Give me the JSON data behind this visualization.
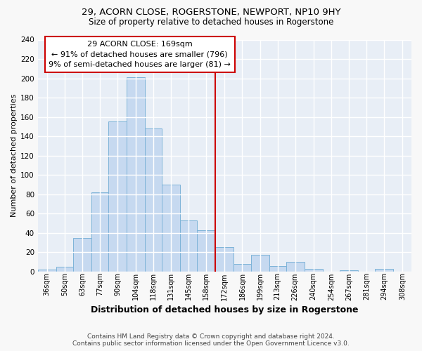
{
  "title_line1": "29, ACORN CLOSE, ROGERSTONE, NEWPORT, NP10 9HY",
  "title_line2": "Size of property relative to detached houses in Rogerstone",
  "xlabel": "Distribution of detached houses by size in Rogerstone",
  "ylabel": "Number of detached properties",
  "bar_color": "#c6d9f0",
  "bar_edge_color": "#7db3d8",
  "background_color": "#e8eef6",
  "grid_color": "#ffffff",
  "categories": [
    "36sqm",
    "50sqm",
    "63sqm",
    "77sqm",
    "90sqm",
    "104sqm",
    "118sqm",
    "131sqm",
    "145sqm",
    "158sqm",
    "172sqm",
    "186sqm",
    "199sqm",
    "213sqm",
    "226sqm",
    "240sqm",
    "254sqm",
    "267sqm",
    "281sqm",
    "294sqm",
    "308sqm"
  ],
  "values": [
    2,
    5,
    35,
    82,
    155,
    201,
    148,
    90,
    53,
    43,
    25,
    8,
    17,
    6,
    10,
    3,
    0,
    1,
    0,
    3,
    0
  ],
  "bin_edges": [
    36,
    50,
    63,
    77,
    90,
    104,
    118,
    131,
    145,
    158,
    172,
    186,
    199,
    213,
    226,
    240,
    254,
    267,
    281,
    294,
    308,
    322
  ],
  "vline_x": 172,
  "vline_color": "#cc0000",
  "box_text_line1": "29 ACORN CLOSE: 169sqm",
  "box_text_line2": "← 91% of detached houses are smaller (796)",
  "box_text_line3": "9% of semi-detached houses are larger (81) →",
  "box_facecolor": "#ffffff",
  "box_edgecolor": "#cc0000",
  "footer_line1": "Contains HM Land Registry data © Crown copyright and database right 2024.",
  "footer_line2": "Contains public sector information licensed under the Open Government Licence v3.0.",
  "ylim_max": 240,
  "yticks": [
    0,
    20,
    40,
    60,
    80,
    100,
    120,
    140,
    160,
    180,
    200,
    220,
    240
  ],
  "fig_bg": "#f8f8f8",
  "title1_fontsize": 9.5,
  "title2_fontsize": 8.5,
  "ylabel_fontsize": 8,
  "xlabel_fontsize": 9,
  "tick_fontsize": 7,
  "footer_fontsize": 6.5,
  "annot_fontsize": 8
}
